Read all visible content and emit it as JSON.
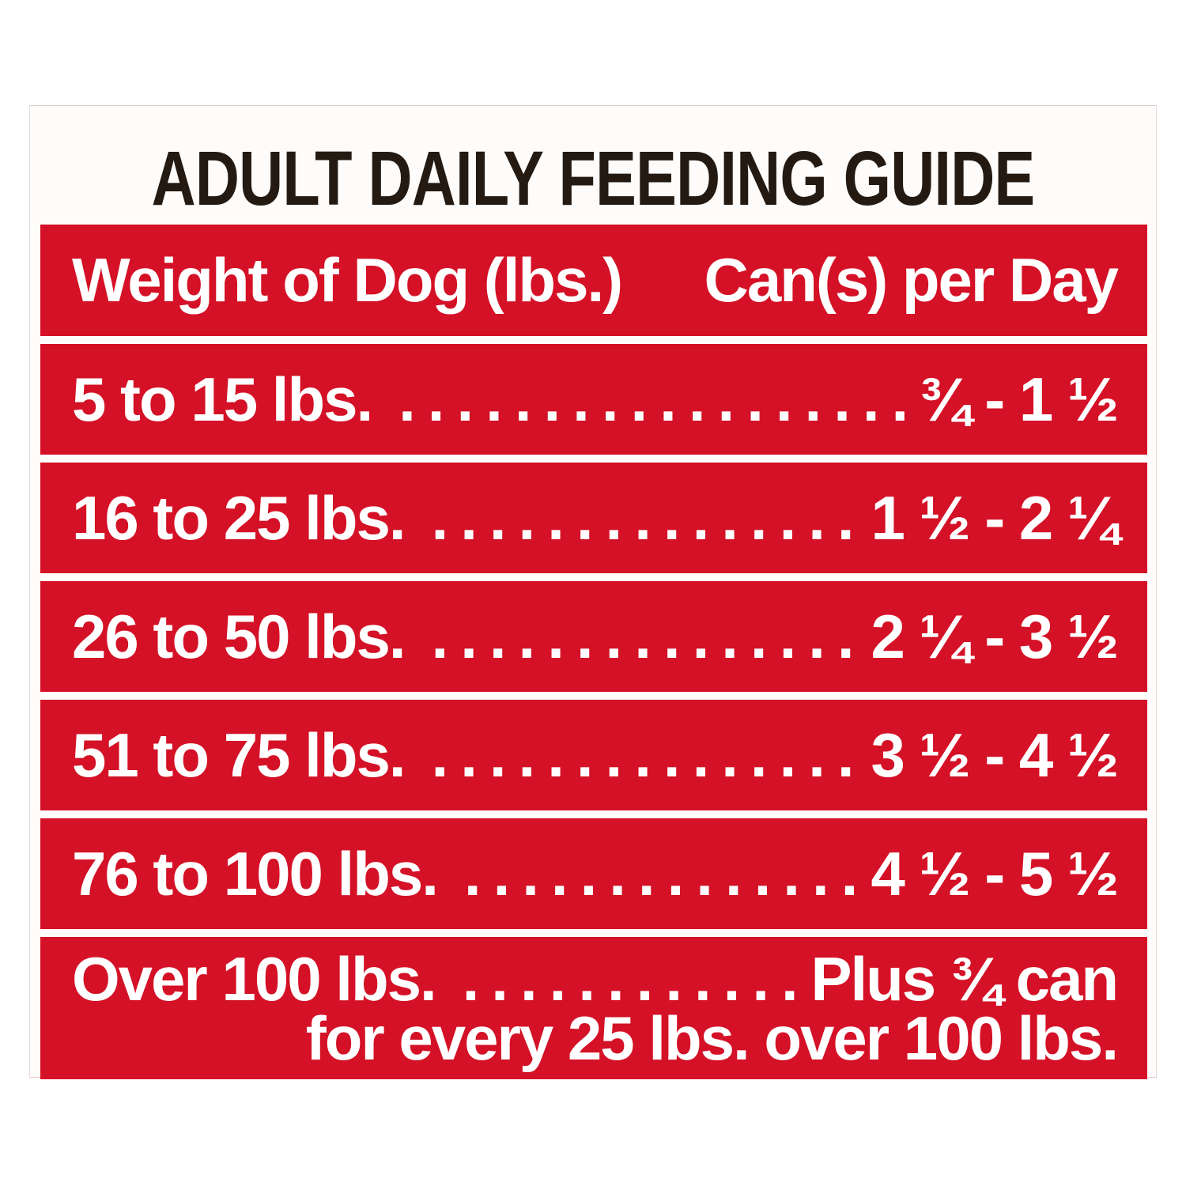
{
  "title": "ADULT DAILY FEEDING GUIDE",
  "table": {
    "col1_header": "Weight of Dog (lbs.)",
    "col2_header": "Can(s) per Day",
    "leader": ".................................................",
    "rows": [
      {
        "weight": "5 to 15 lbs.",
        "cans": "¾ - 1 ½"
      },
      {
        "weight": "16 to 25 lbs.",
        "cans": "1 ½ - 2 ¼"
      },
      {
        "weight": "26 to 50 lbs.",
        "cans": "2 ¼ - 3 ½"
      },
      {
        "weight": "51 to 75 lbs.",
        "cans": "3 ½ - 4 ½"
      },
      {
        "weight": "76 to 100 lbs.",
        "cans": "4 ½ - 5 ½"
      }
    ],
    "last_row": {
      "weight": "Over 100 lbs.",
      "cans_line1": "Plus ¾ can",
      "cans_line2": "for every 25 lbs. over 100 lbs."
    }
  },
  "colors": {
    "band_red": "#d41126",
    "text_white": "#ffffff",
    "title_black": "#241a11"
  }
}
